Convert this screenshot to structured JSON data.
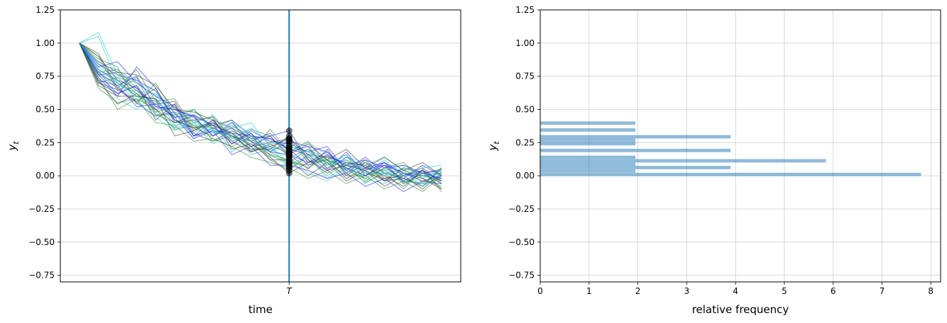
{
  "chart_data": [
    {
      "type": "line",
      "xlabel": "time",
      "ylabel": "y",
      "ylabel_subscript": "t",
      "ylim": [
        -0.8,
        1.25
      ],
      "yticks": [
        -0.75,
        -0.5,
        -0.25,
        0.0,
        0.25,
        0.5,
        0.75,
        1.0,
        1.25
      ],
      "ytick_labels": [
        "−0.75",
        "−0.50",
        "−0.25",
        "0.00",
        "0.25",
        "0.50",
        "0.75",
        "1.00",
        "1.25"
      ],
      "xlim": [
        -1,
        20
      ],
      "grid": "y",
      "vline": {
        "x": 11,
        "label": "T",
        "color": "#1f77b4"
      },
      "series_colors": [
        "#1c1cf0",
        "#20c2c8",
        "#2e8b2e",
        "#333333"
      ],
      "x": [
        0,
        1,
        2,
        3,
        4,
        5,
        6,
        7,
        8,
        9,
        10,
        11,
        12,
        13,
        14,
        15,
        16,
        17,
        18,
        19
      ],
      "series": [
        {
          "values": [
            1.0,
            0.72,
            0.68,
            0.75,
            0.52,
            0.5,
            0.45,
            0.38,
            0.42,
            0.3,
            0.28,
            0.2,
            0.16,
            0.14,
            0.1,
            0.05,
            0.08,
            0.02,
            0.0,
            -0.02
          ]
        },
        {
          "values": [
            1.0,
            0.85,
            0.7,
            0.62,
            0.56,
            0.44,
            0.5,
            0.35,
            0.4,
            0.32,
            0.2,
            0.22,
            0.18,
            0.1,
            0.12,
            0.06,
            0.04,
            0.08,
            0.0,
            0.02
          ]
        },
        {
          "values": [
            1.0,
            0.78,
            0.8,
            0.66,
            0.48,
            0.52,
            0.4,
            0.45,
            0.28,
            0.35,
            0.3,
            0.14,
            0.2,
            0.12,
            0.05,
            0.1,
            0.02,
            0.05,
            -0.05,
            0.03
          ]
        },
        {
          "values": [
            1.0,
            0.9,
            0.72,
            0.6,
            0.58,
            0.42,
            0.36,
            0.4,
            0.32,
            0.22,
            0.25,
            0.28,
            0.1,
            0.15,
            0.08,
            0.12,
            -0.02,
            0.0,
            0.06,
            -0.06
          ]
        },
        {
          "values": [
            1.0,
            0.7,
            0.65,
            0.55,
            0.45,
            0.48,
            0.3,
            0.36,
            0.3,
            0.26,
            0.18,
            0.26,
            0.22,
            0.05,
            0.18,
            0.0,
            0.1,
            -0.05,
            0.02,
            0.04
          ]
        },
        {
          "values": [
            1.0,
            0.82,
            0.74,
            0.7,
            0.6,
            0.38,
            0.42,
            0.32,
            0.36,
            0.4,
            0.22,
            0.18,
            0.25,
            0.16,
            0.02,
            0.08,
            0.14,
            0.04,
            -0.08,
            0.0
          ]
        },
        {
          "values": [
            1.0,
            0.66,
            0.55,
            0.58,
            0.5,
            0.35,
            0.38,
            0.28,
            0.22,
            0.3,
            0.15,
            0.1,
            0.08,
            0.12,
            0.06,
            -0.05,
            0.02,
            -0.1,
            0.05,
            -0.12
          ]
        },
        {
          "values": [
            1.0,
            0.76,
            0.78,
            0.64,
            0.54,
            0.56,
            0.34,
            0.42,
            0.26,
            0.18,
            0.24,
            0.16,
            0.05,
            0.2,
            0.0,
            0.1,
            -0.04,
            0.06,
            0.02,
            0.05
          ]
        },
        {
          "values": [
            1.0,
            0.74,
            0.6,
            0.82,
            0.66,
            0.4,
            0.45,
            0.3,
            0.36,
            0.22,
            0.3,
            0.34,
            0.12,
            0.04,
            0.14,
            0.06,
            0.1,
            0.0,
            0.04,
            -0.04
          ]
        },
        {
          "values": [
            1.0,
            0.8,
            0.58,
            0.5,
            0.62,
            0.47,
            0.28,
            0.4,
            0.18,
            0.3,
            0.16,
            0.08,
            0.15,
            -0.02,
            0.08,
            0.0,
            0.05,
            -0.06,
            0.0,
            0.02
          ]
        },
        {
          "values": [
            1.0,
            0.88,
            0.82,
            0.54,
            0.7,
            0.46,
            0.5,
            0.36,
            0.42,
            0.18,
            0.35,
            0.18,
            0.26,
            0.08,
            0.16,
            -0.04,
            0.06,
            0.1,
            -0.02,
            -0.08
          ]
        },
        {
          "values": [
            1.0,
            0.7,
            0.62,
            0.68,
            0.42,
            0.54,
            0.32,
            0.26,
            0.34,
            0.26,
            0.12,
            0.12,
            0.0,
            0.1,
            -0.04,
            0.04,
            -0.08,
            0.0,
            -0.1,
            0.02
          ]
        },
        {
          "values": [
            1.0,
            0.84,
            0.76,
            0.72,
            0.64,
            0.44,
            0.46,
            0.38,
            0.24,
            0.34,
            0.26,
            0.24,
            0.18,
            0.22,
            0.04,
            0.14,
            0.02,
            -0.02,
            0.08,
            0.0
          ]
        },
        {
          "values": [
            1.0,
            1.05,
            0.7,
            0.6,
            0.48,
            0.36,
            0.5,
            0.34,
            0.3,
            0.2,
            0.22,
            0.06,
            0.14,
            0.0,
            0.1,
            -0.06,
            0.04,
            -0.04,
            -0.06,
            0.06
          ]
        },
        {
          "values": [
            1.0,
            0.77,
            0.66,
            0.8,
            0.56,
            0.58,
            0.36,
            0.3,
            0.38,
            0.28,
            0.18,
            0.1,
            0.2,
            0.06,
            0.12,
            0.02,
            -0.02,
            0.04,
            0.0,
            -0.04
          ]
        },
        {
          "values": [
            1.0,
            0.72,
            0.54,
            0.62,
            0.5,
            0.4,
            0.42,
            0.44,
            0.2,
            0.24,
            0.14,
            0.02,
            0.1,
            0.12,
            -0.02,
            0.06,
            0.0,
            -0.08,
            0.04,
            -0.1
          ]
        },
        {
          "values": [
            1.0,
            0.82,
            0.86,
            0.7,
            0.6,
            0.52,
            0.3,
            0.34,
            0.32,
            0.3,
            0.28,
            0.2,
            0.08,
            0.16,
            0.08,
            0.04,
            0.1,
            0.02,
            -0.04,
            0.0
          ]
        },
        {
          "values": [
            1.0,
            0.76,
            0.7,
            0.56,
            0.44,
            0.34,
            0.4,
            0.24,
            0.34,
            0.16,
            0.2,
            0.14,
            0.02,
            -0.04,
            0.06,
            -0.02,
            -0.06,
            0.02,
            -0.02,
            0.04
          ]
        },
        {
          "values": [
            1.0,
            0.9,
            0.64,
            0.74,
            0.46,
            0.46,
            0.38,
            0.36,
            0.26,
            0.32,
            0.12,
            0.04,
            0.16,
            0.1,
            0.0,
            0.0,
            0.08,
            -0.06,
            0.02,
            -0.06
          ]
        },
        {
          "values": [
            1.0,
            0.68,
            0.6,
            0.6,
            0.58,
            0.3,
            0.34,
            0.4,
            0.3,
            0.2,
            0.2,
            0.3,
            0.12,
            0.02,
            0.1,
            0.08,
            -0.04,
            -0.02,
            -0.08,
            0.06
          ]
        },
        {
          "values": [
            1.0,
            0.8,
            0.72,
            0.66,
            0.52,
            0.5,
            0.44,
            0.3,
            0.4,
            0.26,
            0.32,
            0.18,
            0.22,
            0.18,
            0.02,
            0.12,
            0.06,
            0.08,
            0.02,
            -0.02
          ]
        },
        {
          "values": [
            1.0,
            1.08,
            0.76,
            0.64,
            0.62,
            0.42,
            0.32,
            0.46,
            0.28,
            0.36,
            0.24,
            0.26,
            0.14,
            0.08,
            0.16,
            0.02,
            0.12,
            0.0,
            0.06,
            0.08
          ]
        },
        {
          "values": [
            1.0,
            0.74,
            0.5,
            0.58,
            0.4,
            0.38,
            0.26,
            0.28,
            0.22,
            0.14,
            0.1,
            0.06,
            -0.02,
            0.04,
            -0.06,
            0.0,
            -0.1,
            -0.04,
            -0.12,
            0.0
          ]
        },
        {
          "values": [
            1.0,
            0.86,
            0.78,
            0.76,
            0.68,
            0.5,
            0.48,
            0.42,
            0.36,
            0.28,
            0.3,
            0.16,
            0.24,
            0.12,
            0.2,
            0.06,
            0.14,
            0.04,
            0.1,
            0.0
          ]
        },
        {
          "values": [
            1.0,
            0.78,
            0.68,
            0.52,
            0.54,
            0.44,
            0.28,
            0.34,
            0.16,
            0.22,
            0.08,
            0.08,
            0.04,
            -0.02,
            0.02,
            -0.08,
            -0.02,
            -0.12,
            -0.04,
            -0.06
          ]
        },
        {
          "values": [
            1.0,
            0.84,
            0.8,
            0.7,
            0.64,
            0.48,
            0.42,
            0.32,
            0.38,
            0.3,
            0.26,
            0.22,
            0.18,
            0.1,
            0.14,
            0.1,
            0.0,
            0.06,
            0.0,
            0.04
          ]
        },
        {
          "values": [
            1.0,
            0.7,
            0.74,
            0.62,
            0.46,
            0.4,
            0.46,
            0.26,
            0.3,
            0.24,
            0.16,
            0.12,
            0.06,
            0.14,
            0.04,
            -0.02,
            0.06,
            -0.02,
            -0.06,
            -0.02
          ]
        },
        {
          "values": [
            1.0,
            0.92,
            0.66,
            0.56,
            0.66,
            0.42,
            0.36,
            0.38,
            0.32,
            0.18,
            0.22,
            0.28,
            0.16,
            0.04,
            0.08,
            0.04,
            -0.04,
            0.02,
            -0.02,
            -0.1
          ]
        },
        {
          "values": [
            1.0,
            0.76,
            0.62,
            0.68,
            0.5,
            0.54,
            0.3,
            0.42,
            0.24,
            0.32,
            0.18,
            0.16,
            0.1,
            0.18,
            0.06,
            0.0,
            0.08,
            -0.04,
            0.04,
            -0.04
          ]
        },
        {
          "values": [
            1.0,
            0.8,
            0.7,
            0.6,
            0.56,
            0.36,
            0.4,
            0.34,
            0.28,
            0.26,
            0.22,
            0.1,
            0.2,
            0.08,
            0.1,
            0.02,
            0.02,
            0.0,
            -0.08,
            0.02
          ]
        }
      ]
    },
    {
      "type": "bar",
      "orientation": "horizontal",
      "xlabel": "relative frequency",
      "ylabel": "y",
      "ylabel_subscript": "t",
      "xlim": [
        0,
        8.2
      ],
      "xticks": [
        0,
        1,
        2,
        3,
        4,
        5,
        6,
        7,
        8
      ],
      "ylim": [
        -0.8,
        1.25
      ],
      "yticks": [
        -0.75,
        -0.5,
        -0.25,
        0.0,
        0.25,
        0.5,
        0.75,
        1.0,
        1.25
      ],
      "ytick_labels": [
        "−0.75",
        "−0.50",
        "−0.25",
        "0.00",
        "0.25",
        "0.50",
        "0.75",
        "1.00",
        "1.25"
      ],
      "grid": "both",
      "bar_color": "#1f77b4",
      "bar_alpha": 0.5,
      "bar_height": 0.0256,
      "categories": [
        0.01,
        0.036,
        0.062,
        0.088,
        0.113,
        0.139,
        0.165,
        0.191,
        0.216,
        0.242,
        0.268,
        0.294,
        0.32,
        0.345,
        0.371,
        0.397
      ],
      "values": [
        7.8,
        1.95,
        3.9,
        1.95,
        5.85,
        1.95,
        0,
        3.9,
        0,
        1.95,
        1.95,
        3.9,
        0,
        1.95,
        0,
        1.95
      ]
    }
  ]
}
